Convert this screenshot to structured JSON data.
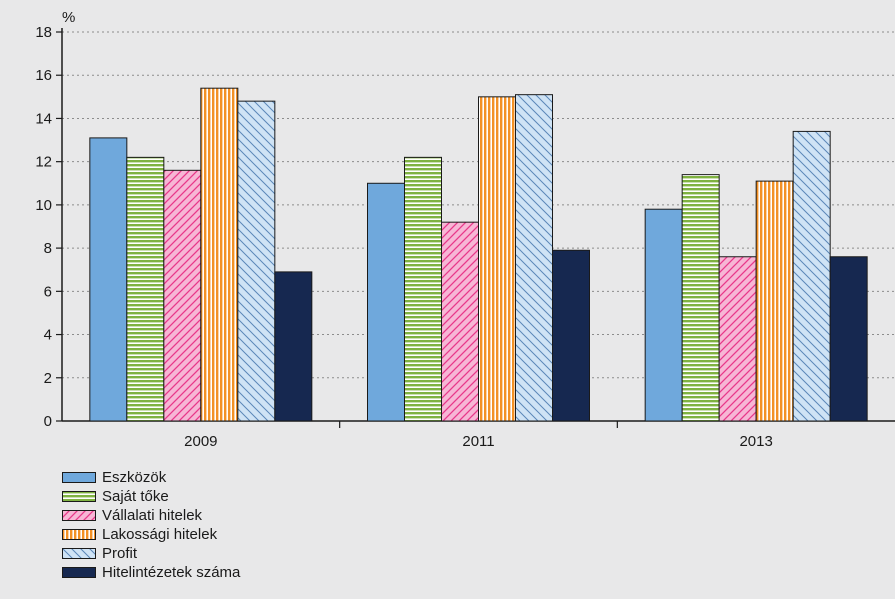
{
  "chart_data": {
    "type": "bar",
    "title": "",
    "unit": "%",
    "xlabel": "",
    "ylabel": "",
    "ylim": [
      0,
      18
    ],
    "yticks": [
      0,
      2,
      4,
      6,
      8,
      10,
      12,
      14,
      16,
      18
    ],
    "ytick_labels": [
      "0",
      "2",
      "4",
      "6",
      "8",
      "10",
      "12",
      "14",
      "16",
      "18"
    ],
    "grid": true,
    "legend_position": "bottom-left",
    "categories": [
      "2009",
      "2011",
      "2013"
    ],
    "series": [
      {
        "name": "Eszközök",
        "values": [
          13.1,
          11.0,
          9.8
        ],
        "color": "#6fa8dc",
        "pattern": "solid"
      },
      {
        "name": "Saját tőke",
        "values": [
          12.2,
          12.2,
          11.4
        ],
        "color": "#7fb241",
        "pattern": "horizontal"
      },
      {
        "name": "Vállalati hitelek",
        "values": [
          11.6,
          9.2,
          7.6
        ],
        "color": "#e8388a",
        "pattern": "diagonal"
      },
      {
        "name": "Lakossági hitelek",
        "values": [
          15.4,
          15.0,
          11.1
        ],
        "color": "#f39125",
        "pattern": "vertical"
      },
      {
        "name": "Profit",
        "values": [
          14.8,
          15.1,
          13.4
        ],
        "color": "#7aaedb",
        "pattern": "backdiagonal"
      },
      {
        "name": "Hitelintézetek száma",
        "values": [
          6.9,
          7.9,
          7.6
        ],
        "color": "#162850",
        "pattern": "solid"
      }
    ]
  }
}
